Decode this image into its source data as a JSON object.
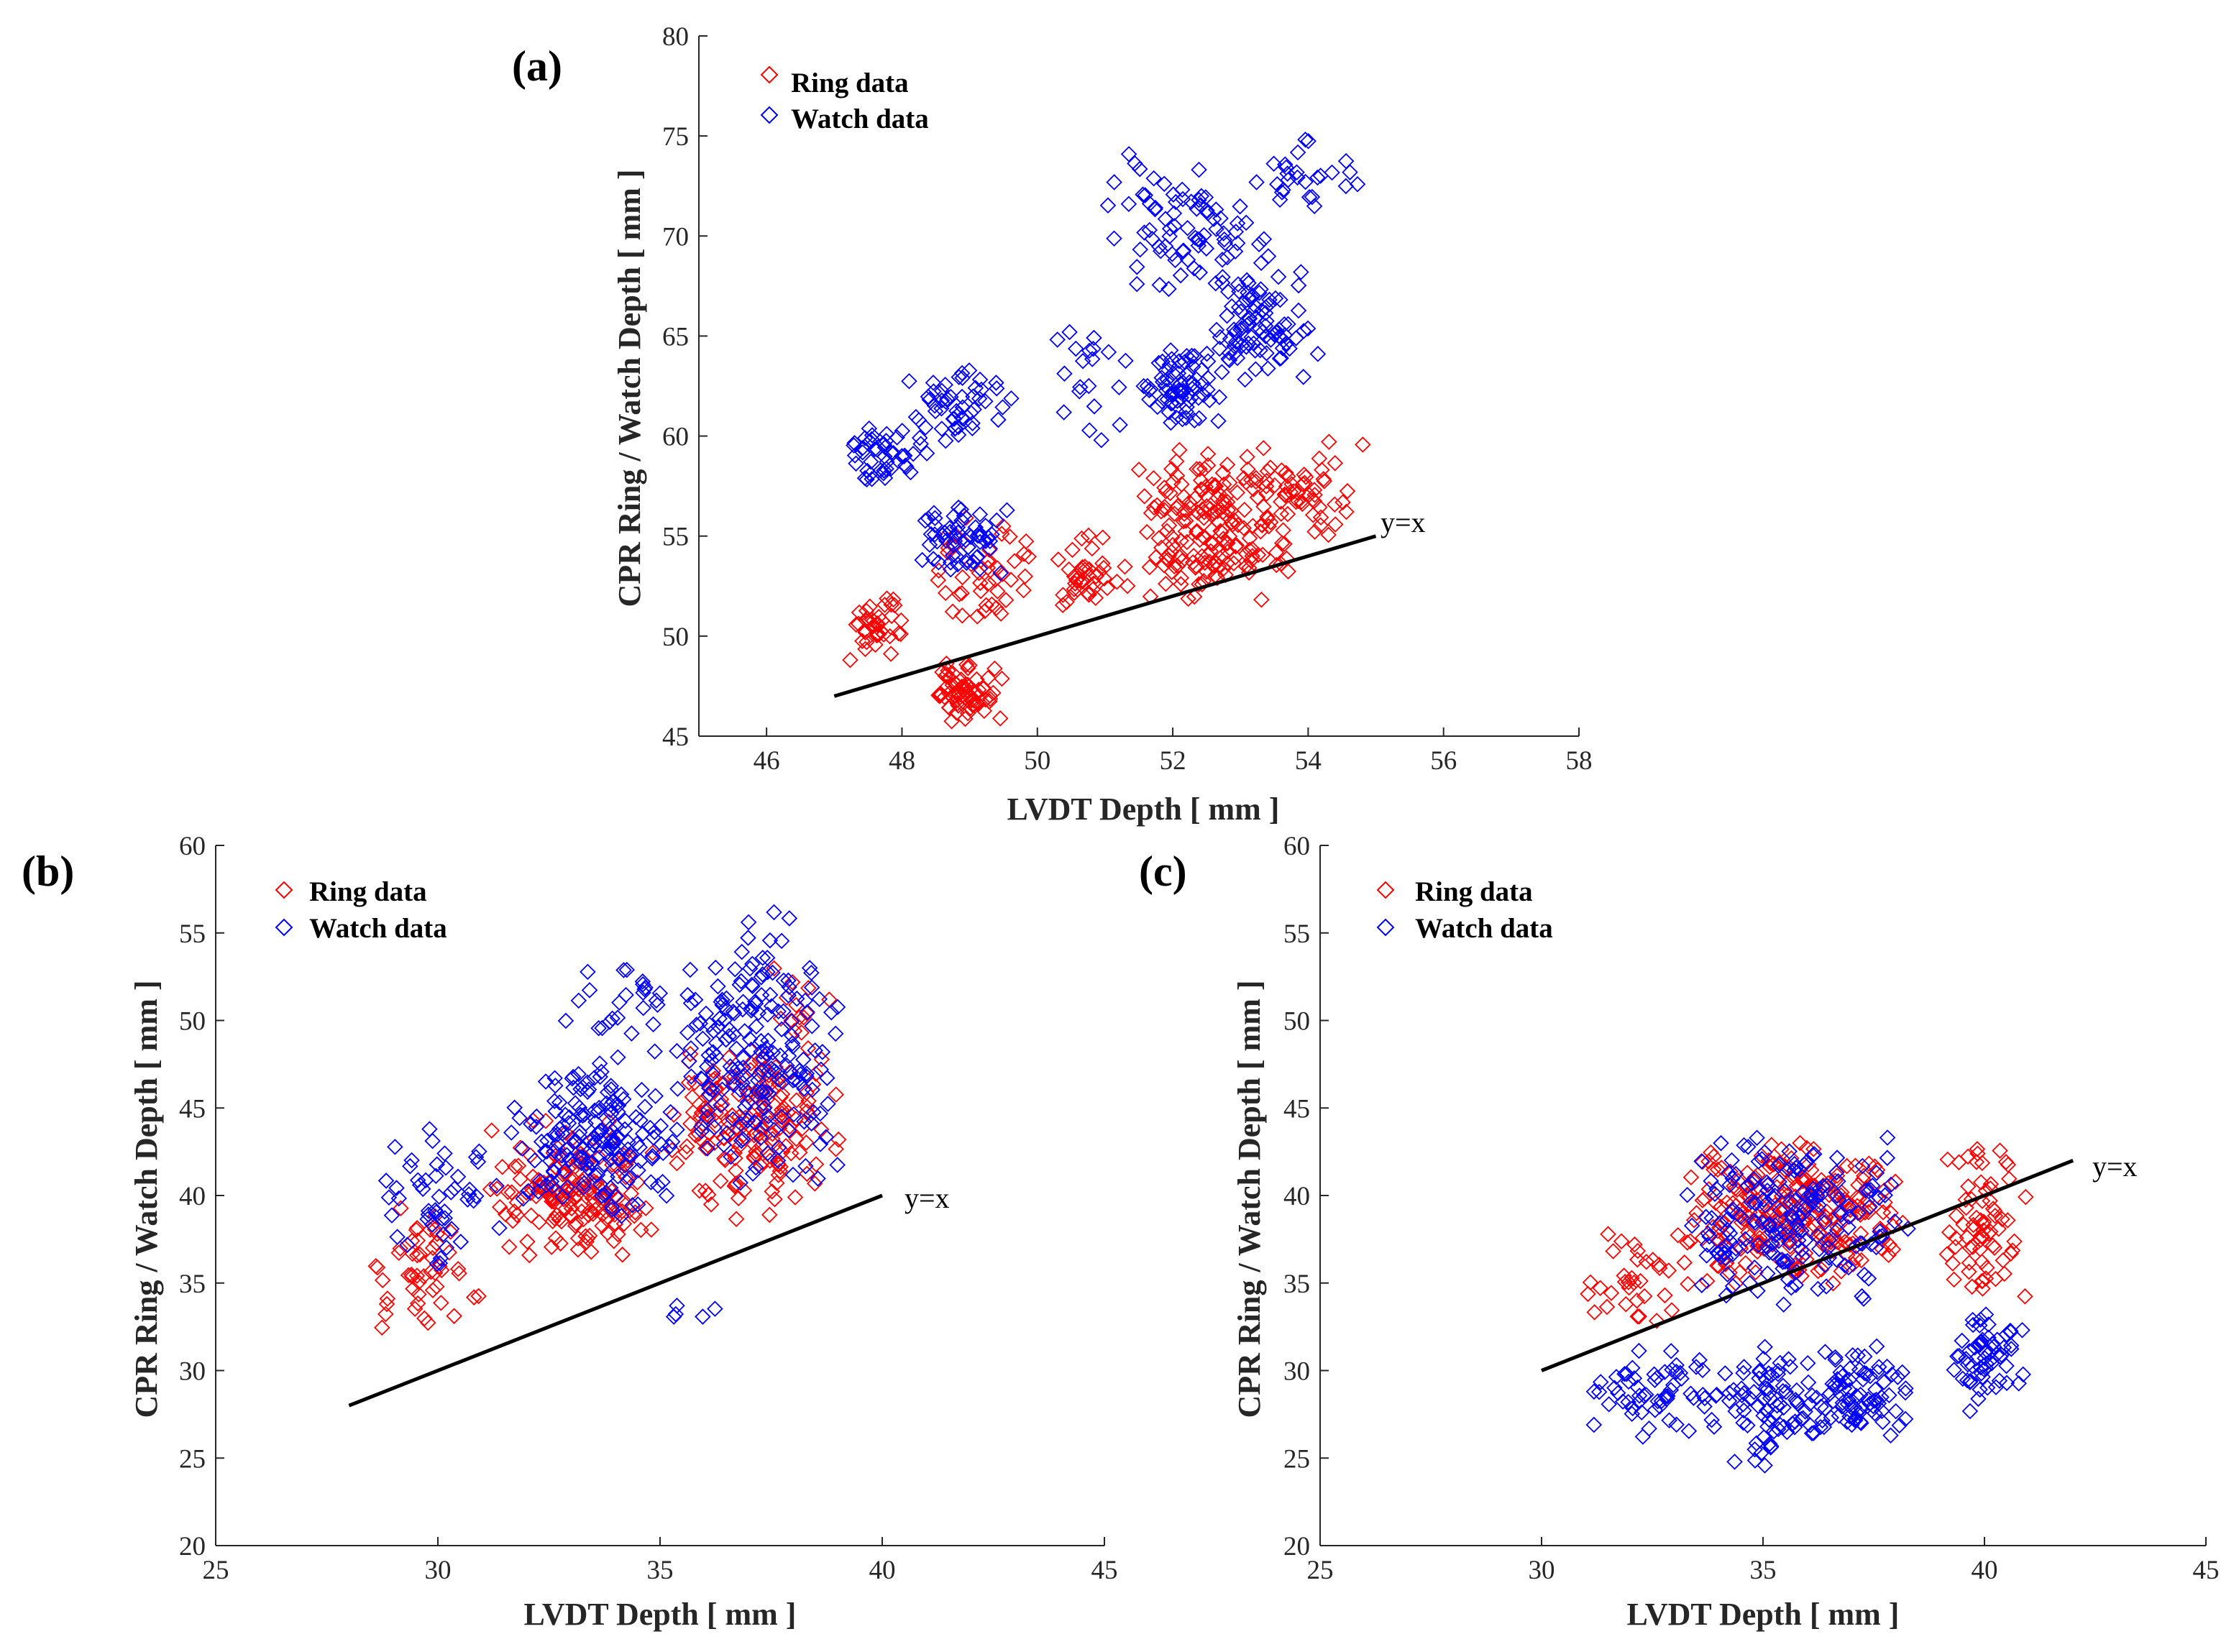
{
  "chart_data": [
    {
      "id": "a",
      "type": "scatter",
      "panel_label": "(a)",
      "xlabel": "LVDT Depth [ mm ]",
      "ylabel": "CPR Ring / Watch Depth [ mm ]",
      "xlim": [
        45,
        58
      ],
      "ylim": [
        45,
        80
      ],
      "xticks": [
        "46",
        "48",
        "50",
        "52",
        "54",
        "56",
        "58"
      ],
      "yticks": [
        "45",
        "50",
        "55",
        "60",
        "65",
        "70",
        "75",
        "80"
      ],
      "legend_position": "top-left",
      "reference_line": {
        "label": "y=x",
        "x": [
          47,
          55
        ],
        "y": [
          47,
          55
        ]
      },
      "series": [
        {
          "name": "Ring data",
          "color": "#ff0000",
          "marker": "diamond",
          "clusters": [
            {
              "x": [
                47.2,
                48.2
              ],
              "y": [
                48.5,
                52.5
              ],
              "n": 40,
              "seed": 11
            },
            {
              "x": [
                48.4,
                49.5
              ],
              "y": [
                45.5,
                48.8
              ],
              "n": 70,
              "seed": 12
            },
            {
              "x": [
                48.3,
                50.0
              ],
              "y": [
                50.2,
                56.5
              ],
              "n": 45,
              "seed": 13
            },
            {
              "x": [
                50.0,
                51.5
              ],
              "y": [
                51.0,
                55.5
              ],
              "n": 40,
              "seed": 14
            },
            {
              "x": [
                51.4,
                53.8
              ],
              "y": [
                51.5,
                59.5
              ],
              "n": 190,
              "seed": 15
            },
            {
              "x": [
                53.0,
                54.9
              ],
              "y": [
                54.5,
                60.5
              ],
              "n": 50,
              "seed": 16
            }
          ]
        },
        {
          "name": "Watch data",
          "color": "#0000ff",
          "marker": "diamond",
          "clusters": [
            {
              "x": [
                47.0,
                48.5
              ],
              "y": [
                57.5,
                61.0
              ],
              "n": 45,
              "seed": 21
            },
            {
              "x": [
                48.0,
                49.8
              ],
              "y": [
                59.5,
                63.5
              ],
              "n": 50,
              "seed": 22
            },
            {
              "x": [
                48.2,
                49.6
              ],
              "y": [
                53.0,
                57.0
              ],
              "n": 60,
              "seed": 23
            },
            {
              "x": [
                50.2,
                51.4
              ],
              "y": [
                59.0,
                67.0
              ],
              "n": 20,
              "seed": 24
            },
            {
              "x": [
                51.4,
                52.8
              ],
              "y": [
                60.5,
                64.5
              ],
              "n": 70,
              "seed": 25
            },
            {
              "x": [
                52.4,
                54.2
              ],
              "y": [
                62.5,
                68.5
              ],
              "n": 90,
              "seed": 26
            },
            {
              "x": [
                51.0,
                53.5
              ],
              "y": [
                66.5,
                74.5
              ],
              "n": 80,
              "seed": 27
            },
            {
              "x": [
                53.0,
                54.8
              ],
              "y": [
                71.0,
                75.5
              ],
              "n": 25,
              "seed": 28
            }
          ]
        }
      ]
    },
    {
      "id": "b",
      "type": "scatter",
      "panel_label": "(b)",
      "xlabel": "LVDT Depth [ mm ]",
      "ylabel": "CPR Ring / Watch Depth [ mm ]",
      "xlim": [
        25,
        45
      ],
      "ylim": [
        20,
        60
      ],
      "xticks": [
        "25",
        "30",
        "35",
        "40",
        "45"
      ],
      "yticks": [
        "20",
        "25",
        "30",
        "35",
        "40",
        "45",
        "50",
        "55",
        "60"
      ],
      "legend_position": "top-left",
      "reference_line": {
        "label": "y=x",
        "x": [
          28,
          40
        ],
        "y": [
          28,
          40
        ]
      },
      "series": [
        {
          "name": "Ring data",
          "color": "#ff0000",
          "marker": "diamond",
          "clusters": [
            {
              "x": [
                28.3,
                31.0
              ],
              "y": [
                31.5,
                40.0
              ],
              "n": 50,
              "seed": 31
            },
            {
              "x": [
                31.0,
                35.0
              ],
              "y": [
                36.0,
                44.5
              ],
              "n": 170,
              "seed": 32
            },
            {
              "x": [
                35.0,
                39.2
              ],
              "y": [
                38.5,
                49.5
              ],
              "n": 170,
              "seed": 33
            },
            {
              "x": [
                37.5,
                39.0
              ],
              "y": [
                46.0,
                53.8
              ],
              "n": 15,
              "seed": 34
            }
          ]
        },
        {
          "name": "Watch data",
          "color": "#0000ff",
          "marker": "diamond",
          "clusters": [
            {
              "x": [
                28.5,
                31.5
              ],
              "y": [
                35.0,
                45.0
              ],
              "n": 50,
              "seed": 41
            },
            {
              "x": [
                31.5,
                35.5
              ],
              "y": [
                38.0,
                48.0
              ],
              "n": 170,
              "seed": 42
            },
            {
              "x": [
                35.0,
                39.3
              ],
              "y": [
                39.5,
                56.5
              ],
              "n": 200,
              "seed": 43
            },
            {
              "x": [
                32.5,
                36.0
              ],
              "y": [
                48.0,
                54.0
              ],
              "n": 25,
              "seed": 44
            },
            {
              "x": [
                34.8,
                36.6
              ],
              "y": [
                32.5,
                34.0
              ],
              "n": 5,
              "seed": 45
            }
          ]
        }
      ]
    },
    {
      "id": "c",
      "type": "scatter",
      "panel_label": "(c)",
      "xlabel": "LVDT Depth [ mm ]",
      "ylabel": "CPR Ring / Watch Depth [ mm ]",
      "xlim": [
        25,
        45
      ],
      "ylim": [
        20,
        60
      ],
      "xticks": [
        "25",
        "30",
        "35",
        "40",
        "45"
      ],
      "yticks": [
        "20",
        "25",
        "30",
        "35",
        "40",
        "45",
        "50",
        "55",
        "60"
      ],
      "legend_position": "top-left",
      "reference_line": {
        "label": "y=x",
        "x": [
          30,
          42
        ],
        "y": [
          30,
          42
        ]
      },
      "series": [
        {
          "name": "Ring data",
          "color": "#ff0000",
          "marker": "diamond",
          "clusters": [
            {
              "x": [
                30.8,
                33.5
              ],
              "y": [
                32.0,
                38.5
              ],
              "n": 35,
              "seed": 51
            },
            {
              "x": [
                33.0,
                38.5
              ],
              "y": [
                34.5,
                43.5
              ],
              "n": 260,
              "seed": 52
            },
            {
              "x": [
                39.0,
                41.0
              ],
              "y": [
                33.0,
                44.0
              ],
              "n": 70,
              "seed": 53
            }
          ]
        },
        {
          "name": "Watch data",
          "color": "#0000ff",
          "marker": "diamond",
          "clusters": [
            {
              "x": [
                30.8,
                34.5
              ],
              "y": [
                25.0,
                31.5
              ],
              "n": 60,
              "seed": 61
            },
            {
              "x": [
                34.0,
                36.5
              ],
              "y": [
                24.5,
                32.0
              ],
              "n": 80,
              "seed": 62
            },
            {
              "x": [
                36.0,
                38.5
              ],
              "y": [
                26.0,
                31.5
              ],
              "n": 80,
              "seed": 63
            },
            {
              "x": [
                39.2,
                41.0
              ],
              "y": [
                27.5,
                33.5
              ],
              "n": 60,
              "seed": 64
            },
            {
              "x": [
                33.0,
                38.5
              ],
              "y": [
                33.5,
                43.5
              ],
              "n": 190,
              "seed": 65
            }
          ]
        }
      ]
    }
  ]
}
